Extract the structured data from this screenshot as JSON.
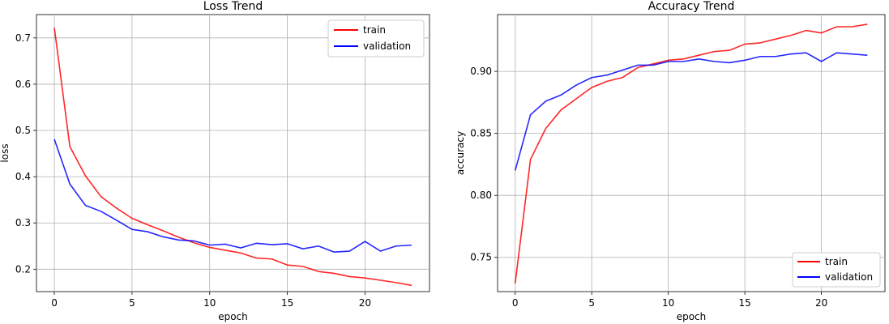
{
  "chart_data": [
    {
      "type": "line",
      "title": "Loss Trend",
      "xlabel": "epoch",
      "ylabel": "loss",
      "xlim": [
        -1.15,
        24.15
      ],
      "ylim": [
        0.1515,
        0.7505
      ],
      "xticks": [
        0,
        5,
        10,
        15,
        20
      ],
      "yticks": [
        0.2,
        0.3,
        0.4,
        0.5,
        0.6,
        0.7
      ],
      "ytick_labels": [
        "0.2",
        "0.3",
        "0.4",
        "0.5",
        "0.6",
        "0.7"
      ],
      "grid": true,
      "legend_position": "top-right",
      "x": [
        0,
        1,
        2,
        3,
        4,
        5,
        6,
        7,
        8,
        9,
        10,
        11,
        12,
        13,
        14,
        15,
        16,
        17,
        18,
        19,
        20,
        21,
        22,
        23
      ],
      "series": [
        {
          "name": "train",
          "color": "#ff0000",
          "values": [
            0.722,
            0.465,
            0.402,
            0.357,
            0.332,
            0.31,
            0.296,
            0.283,
            0.269,
            0.257,
            0.247,
            0.241,
            0.235,
            0.224,
            0.222,
            0.209,
            0.206,
            0.195,
            0.191,
            0.184,
            0.181,
            0.176,
            0.171,
            0.165
          ]
        },
        {
          "name": "validation",
          "color": "#0000ff",
          "values": [
            0.481,
            0.384,
            0.338,
            0.325,
            0.306,
            0.286,
            0.281,
            0.27,
            0.263,
            0.261,
            0.252,
            0.254,
            0.246,
            0.256,
            0.253,
            0.255,
            0.244,
            0.25,
            0.237,
            0.239,
            0.26,
            0.239,
            0.25,
            0.252
          ]
        }
      ]
    },
    {
      "type": "line",
      "title": "Accuracy Trend",
      "xlabel": "epoch",
      "ylabel": "accuracy",
      "xlim": [
        -1.15,
        24.15
      ],
      "ylim": [
        0.7224,
        0.9458
      ],
      "xticks": [
        0,
        5,
        10,
        15,
        20
      ],
      "yticks": [
        0.75,
        0.8,
        0.85,
        0.9
      ],
      "ytick_labels": [
        "0.75",
        "0.80",
        "0.85",
        "0.90"
      ],
      "grid": true,
      "legend_position": "bottom-right",
      "x": [
        0,
        1,
        2,
        3,
        4,
        5,
        6,
        7,
        8,
        9,
        10,
        11,
        12,
        13,
        14,
        15,
        16,
        17,
        18,
        19,
        20,
        21,
        22,
        23
      ],
      "series": [
        {
          "name": "train",
          "color": "#ff0000",
          "values": [
            0.729,
            0.829,
            0.854,
            0.869,
            0.878,
            0.887,
            0.892,
            0.895,
            0.903,
            0.906,
            0.909,
            0.91,
            0.913,
            0.916,
            0.917,
            0.922,
            0.923,
            0.926,
            0.929,
            0.933,
            0.931,
            0.936,
            0.936,
            0.938
          ]
        },
        {
          "name": "validation",
          "color": "#0000ff",
          "values": [
            0.82,
            0.865,
            0.876,
            0.881,
            0.889,
            0.895,
            0.897,
            0.901,
            0.905,
            0.905,
            0.908,
            0.908,
            0.91,
            0.908,
            0.907,
            0.909,
            0.912,
            0.912,
            0.914,
            0.915,
            0.908,
            0.915,
            0.914,
            0.913
          ]
        }
      ]
    }
  ]
}
